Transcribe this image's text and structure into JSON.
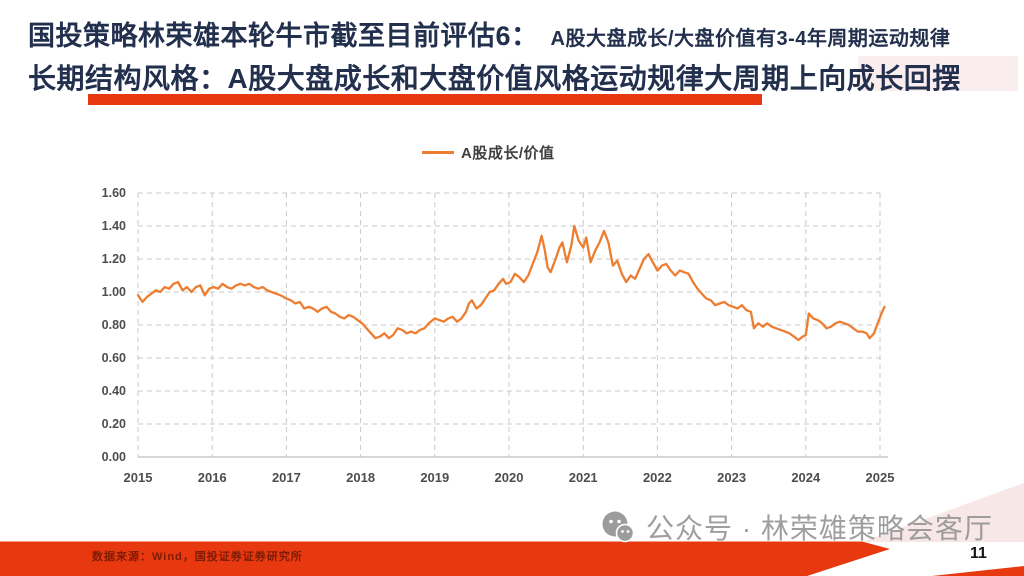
{
  "slide": {
    "title_line1_main": "国投策略林荣雄本轮牛市截至目前评估6：",
    "title_line1_sub": "A股大盘成长/大盘价值有3-4年周期运动规律",
    "title_line2": "长期结构风格：A股大盘成长和大盘价值风格运动规律大周期上向成长回摆",
    "source_note": "数据来源：Wind，国投证券证券研究所",
    "watermark_text": "公众号 · 林荣雄策略会客厅",
    "wechat_icon": "wechat-logo",
    "page_number": "11",
    "accent_red": "#E8380F",
    "title_navy": "#22304E"
  },
  "chart_data": {
    "type": "line",
    "title": "",
    "xlabel": "",
    "ylabel": "",
    "legend": [
      "A股成长/价值"
    ],
    "legend_position": "top-center",
    "grid": true,
    "grid_style": "dashed",
    "line_color": "#ED7D31",
    "tick_color": "#4D4D4D",
    "grid_color": "#C9C9C9",
    "ylim": [
      0,
      1.6
    ],
    "xlim": [
      2015,
      2025.1
    ],
    "y_ticks": [
      "0.00",
      "0.20",
      "0.40",
      "0.60",
      "0.80",
      "1.00",
      "1.20",
      "1.40",
      "1.60"
    ],
    "x_ticks": [
      2015,
      2016,
      2017,
      2018,
      2019,
      2020,
      2021,
      2022,
      2023,
      2024,
      2025
    ],
    "series": [
      {
        "name": "A股成长/价值",
        "points": [
          [
            2015.0,
            0.98
          ],
          [
            2015.06,
            0.94
          ],
          [
            2015.12,
            0.97
          ],
          [
            2015.18,
            0.99
          ],
          [
            2015.24,
            1.01
          ],
          [
            2015.3,
            1.0
          ],
          [
            2015.36,
            1.03
          ],
          [
            2015.42,
            1.02
          ],
          [
            2015.48,
            1.05
          ],
          [
            2015.54,
            1.06
          ],
          [
            2015.6,
            1.01
          ],
          [
            2015.66,
            1.03
          ],
          [
            2015.72,
            1.0
          ],
          [
            2015.78,
            1.03
          ],
          [
            2015.84,
            1.04
          ],
          [
            2015.9,
            0.98
          ],
          [
            2015.96,
            1.02
          ],
          [
            2016.02,
            1.03
          ],
          [
            2016.08,
            1.02
          ],
          [
            2016.14,
            1.05
          ],
          [
            2016.2,
            1.03
          ],
          [
            2016.26,
            1.02
          ],
          [
            2016.32,
            1.04
          ],
          [
            2016.38,
            1.05
          ],
          [
            2016.44,
            1.04
          ],
          [
            2016.5,
            1.05
          ],
          [
            2016.56,
            1.03
          ],
          [
            2016.62,
            1.02
          ],
          [
            2016.68,
            1.03
          ],
          [
            2016.74,
            1.01
          ],
          [
            2016.8,
            1.0
          ],
          [
            2016.86,
            0.99
          ],
          [
            2016.92,
            0.98
          ],
          [
            2017.0,
            0.96
          ],
          [
            2017.06,
            0.95
          ],
          [
            2017.12,
            0.93
          ],
          [
            2017.18,
            0.94
          ],
          [
            2017.24,
            0.9
          ],
          [
            2017.3,
            0.91
          ],
          [
            2017.36,
            0.9
          ],
          [
            2017.42,
            0.88
          ],
          [
            2017.48,
            0.9
          ],
          [
            2017.54,
            0.91
          ],
          [
            2017.6,
            0.88
          ],
          [
            2017.66,
            0.87
          ],
          [
            2017.72,
            0.85
          ],
          [
            2017.78,
            0.84
          ],
          [
            2017.84,
            0.86
          ],
          [
            2017.9,
            0.85
          ],
          [
            2017.96,
            0.83
          ],
          [
            2018.02,
            0.81
          ],
          [
            2018.08,
            0.78
          ],
          [
            2018.14,
            0.75
          ],
          [
            2018.2,
            0.72
          ],
          [
            2018.26,
            0.73
          ],
          [
            2018.32,
            0.75
          ],
          [
            2018.38,
            0.72
          ],
          [
            2018.44,
            0.74
          ],
          [
            2018.5,
            0.78
          ],
          [
            2018.56,
            0.77
          ],
          [
            2018.62,
            0.75
          ],
          [
            2018.68,
            0.76
          ],
          [
            2018.74,
            0.75
          ],
          [
            2018.8,
            0.77
          ],
          [
            2018.86,
            0.78
          ],
          [
            2018.92,
            0.81
          ],
          [
            2019.0,
            0.84
          ],
          [
            2019.06,
            0.83
          ],
          [
            2019.12,
            0.82
          ],
          [
            2019.18,
            0.84
          ],
          [
            2019.24,
            0.85
          ],
          [
            2019.3,
            0.82
          ],
          [
            2019.36,
            0.84
          ],
          [
            2019.42,
            0.88
          ],
          [
            2019.46,
            0.93
          ],
          [
            2019.5,
            0.95
          ],
          [
            2019.56,
            0.9
          ],
          [
            2019.62,
            0.92
          ],
          [
            2019.68,
            0.96
          ],
          [
            2019.74,
            1.0
          ],
          [
            2019.8,
            1.01
          ],
          [
            2019.86,
            1.05
          ],
          [
            2019.92,
            1.08
          ],
          [
            2019.96,
            1.05
          ],
          [
            2020.02,
            1.06
          ],
          [
            2020.08,
            1.11
          ],
          [
            2020.14,
            1.09
          ],
          [
            2020.2,
            1.06
          ],
          [
            2020.26,
            1.1
          ],
          [
            2020.32,
            1.17
          ],
          [
            2020.38,
            1.24
          ],
          [
            2020.44,
            1.34
          ],
          [
            2020.48,
            1.26
          ],
          [
            2020.52,
            1.15
          ],
          [
            2020.56,
            1.12
          ],
          [
            2020.62,
            1.19
          ],
          [
            2020.68,
            1.27
          ],
          [
            2020.72,
            1.3
          ],
          [
            2020.78,
            1.18
          ],
          [
            2020.84,
            1.28
          ],
          [
            2020.88,
            1.4
          ],
          [
            2020.94,
            1.31
          ],
          [
            2021.0,
            1.27
          ],
          [
            2021.04,
            1.33
          ],
          [
            2021.1,
            1.18
          ],
          [
            2021.16,
            1.25
          ],
          [
            2021.22,
            1.3
          ],
          [
            2021.28,
            1.37
          ],
          [
            2021.34,
            1.3
          ],
          [
            2021.4,
            1.16
          ],
          [
            2021.46,
            1.19
          ],
          [
            2021.52,
            1.11
          ],
          [
            2021.58,
            1.06
          ],
          [
            2021.64,
            1.1
          ],
          [
            2021.7,
            1.08
          ],
          [
            2021.76,
            1.14
          ],
          [
            2021.82,
            1.2
          ],
          [
            2021.88,
            1.23
          ],
          [
            2021.94,
            1.18
          ],
          [
            2022.0,
            1.13
          ],
          [
            2022.06,
            1.16
          ],
          [
            2022.12,
            1.17
          ],
          [
            2022.18,
            1.13
          ],
          [
            2022.24,
            1.1
          ],
          [
            2022.3,
            1.13
          ],
          [
            2022.36,
            1.12
          ],
          [
            2022.42,
            1.11
          ],
          [
            2022.48,
            1.06
          ],
          [
            2022.54,
            1.02
          ],
          [
            2022.6,
            0.99
          ],
          [
            2022.66,
            0.96
          ],
          [
            2022.72,
            0.95
          ],
          [
            2022.78,
            0.92
          ],
          [
            2022.84,
            0.93
          ],
          [
            2022.9,
            0.94
          ],
          [
            2022.96,
            0.92
          ],
          [
            2023.02,
            0.91
          ],
          [
            2023.08,
            0.9
          ],
          [
            2023.14,
            0.92
          ],
          [
            2023.2,
            0.89
          ],
          [
            2023.26,
            0.88
          ],
          [
            2023.3,
            0.78
          ],
          [
            2023.36,
            0.81
          ],
          [
            2023.42,
            0.79
          ],
          [
            2023.48,
            0.81
          ],
          [
            2023.54,
            0.79
          ],
          [
            2023.6,
            0.78
          ],
          [
            2023.66,
            0.77
          ],
          [
            2023.72,
            0.76
          ],
          [
            2023.78,
            0.75
          ],
          [
            2023.84,
            0.73
          ],
          [
            2023.9,
            0.71
          ],
          [
            2023.96,
            0.73
          ],
          [
            2024.0,
            0.74
          ],
          [
            2024.04,
            0.87
          ],
          [
            2024.1,
            0.84
          ],
          [
            2024.16,
            0.83
          ],
          [
            2024.22,
            0.81
          ],
          [
            2024.28,
            0.78
          ],
          [
            2024.34,
            0.79
          ],
          [
            2024.4,
            0.81
          ],
          [
            2024.46,
            0.82
          ],
          [
            2024.52,
            0.81
          ],
          [
            2024.58,
            0.8
          ],
          [
            2024.64,
            0.78
          ],
          [
            2024.7,
            0.76
          ],
          [
            2024.76,
            0.76
          ],
          [
            2024.82,
            0.75
          ],
          [
            2024.86,
            0.72
          ],
          [
            2024.92,
            0.75
          ],
          [
            2024.96,
            0.8
          ],
          [
            2025.02,
            0.87
          ],
          [
            2025.06,
            0.91
          ]
        ]
      }
    ]
  }
}
